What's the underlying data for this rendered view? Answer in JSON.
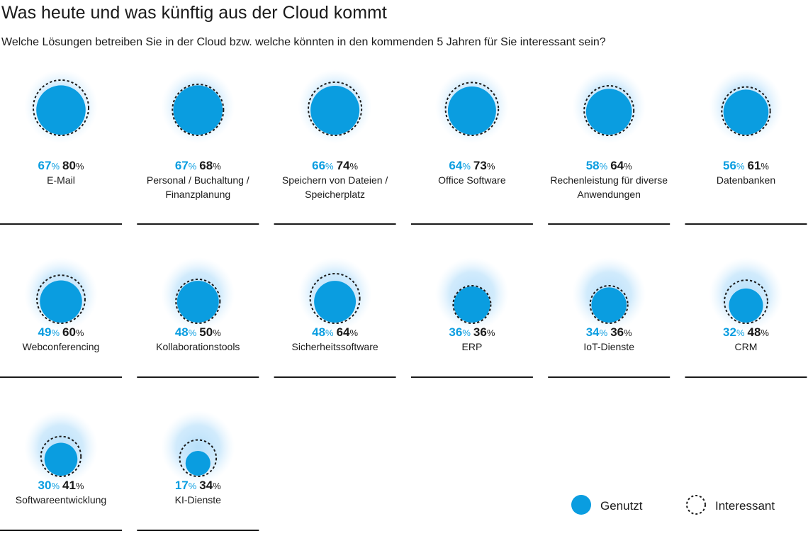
{
  "header": {
    "title": "Was heute und was künftig aus der Cloud kommt",
    "subtitle": "Welche Lösungen betreiben Sie in der Cloud bzw. welche könnten in den kommenden 5 Jahren für Sie interessant sein?"
  },
  "legend": {
    "used_label": "Genutzt",
    "interest_label": "Interessant"
  },
  "colors": {
    "used": "#0a9de0",
    "halo": "#bfe3fb",
    "used_text": "#0a9de0",
    "interest_text": "#1a1a1a",
    "divider": "#1a1a1a"
  },
  "chart_data": {
    "type": "bubble",
    "unit": "%",
    "series": [
      {
        "name": "Genutzt",
        "key": "used"
      },
      {
        "name": "Interessant",
        "key": "interest"
      }
    ],
    "items": [
      {
        "label": [
          "E-Mail"
        ],
        "used": 67,
        "interest": 80
      },
      {
        "label": [
          "Personal / Buchaltung /",
          "Finanzplanung"
        ],
        "used": 67,
        "interest": 68
      },
      {
        "label": [
          "Speichern von Dateien /",
          "Speicherplatz"
        ],
        "used": 66,
        "interest": 74
      },
      {
        "label": [
          "Office Software"
        ],
        "used": 64,
        "interest": 73
      },
      {
        "label": [
          "Rechenleistung für diverse",
          "Anwendungen"
        ],
        "used": 58,
        "interest": 64
      },
      {
        "label": [
          "Datenbanken"
        ],
        "used": 56,
        "interest": 61
      },
      {
        "label": [
          "Webconferencing"
        ],
        "used": 49,
        "interest": 60
      },
      {
        "label": [
          "Kollaborationstools"
        ],
        "used": 48,
        "interest": 50
      },
      {
        "label": [
          "Sicherheitssoftware"
        ],
        "used": 48,
        "interest": 64
      },
      {
        "label": [
          "ERP"
        ],
        "used": 36,
        "interest": 36
      },
      {
        "label": [
          "IoT-Dienste"
        ],
        "used": 34,
        "interest": 36
      },
      {
        "label": [
          "CRM"
        ],
        "used": 32,
        "interest": 48
      },
      {
        "label": [
          "Softwareentwicklung"
        ],
        "used": 30,
        "interest": 41
      },
      {
        "label": [
          "KI-Dienste"
        ],
        "used": 17,
        "interest": 34
      }
    ]
  }
}
